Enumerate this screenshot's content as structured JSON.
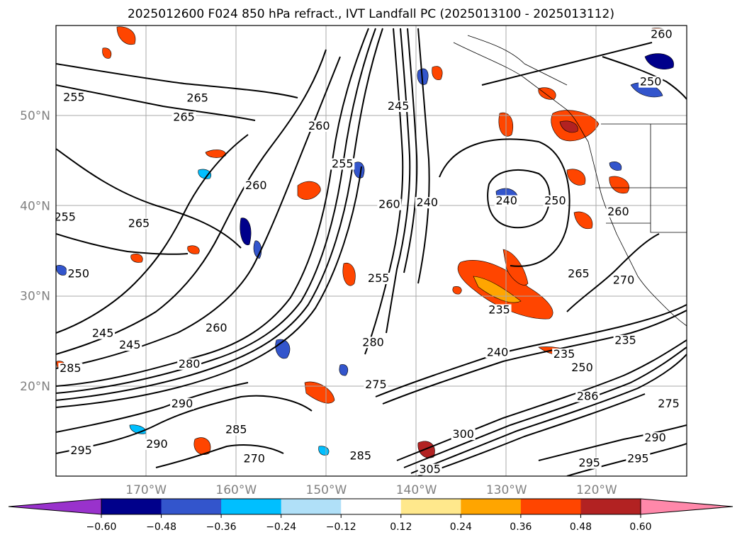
{
  "title": "2025012600 F024 850 hPa refract., IVT Landfall PC (2025013100 - 2025013112)",
  "map": {
    "projection": "lat-lon",
    "extent": {
      "lon_min": -180,
      "lon_max": -110,
      "lat_min": 10,
      "lat_max": 60
    },
    "gridlines": true,
    "lat_ticks": [
      {
        "value": 50,
        "label": "50°N"
      },
      {
        "value": 40,
        "label": "40°N"
      },
      {
        "value": 30,
        "label": "30°N"
      },
      {
        "value": 20,
        "label": "20°N"
      }
    ],
    "lon_ticks": [
      {
        "value": -170,
        "label": "170°W"
      },
      {
        "value": -160,
        "label": "160°W"
      },
      {
        "value": -150,
        "label": "150°W"
      },
      {
        "value": -140,
        "label": "140°W"
      },
      {
        "value": -130,
        "label": "130°W"
      },
      {
        "value": -120,
        "label": "120°W"
      }
    ]
  },
  "contour_labels": [
    {
      "text": "265",
      "lon": -164.3,
      "lat": 51.7
    },
    {
      "text": "265",
      "lon": -165.8,
      "lat": 49.6
    },
    {
      "text": "255",
      "lon": -178.0,
      "lat": 51.8
    },
    {
      "text": "260",
      "lon": -150.8,
      "lat": 48.6
    },
    {
      "text": "255",
      "lon": -148.2,
      "lat": 44.4
    },
    {
      "text": "260",
      "lon": -157.8,
      "lat": 42.0
    },
    {
      "text": "265",
      "lon": -170.8,
      "lat": 37.8
    },
    {
      "text": "255",
      "lon": -179.0,
      "lat": 38.5
    },
    {
      "text": "250",
      "lon": -177.5,
      "lat": 32.2
    },
    {
      "text": "245",
      "lon": -174.8,
      "lat": 25.6
    },
    {
      "text": "245",
      "lon": -171.8,
      "lat": 24.3
    },
    {
      "text": "285",
      "lon": -178.4,
      "lat": 21.7
    },
    {
      "text": "260",
      "lon": -162.2,
      "lat": 26.2
    },
    {
      "text": "280",
      "lon": -165.2,
      "lat": 22.2
    },
    {
      "text": "290",
      "lon": -166.0,
      "lat": 17.8
    },
    {
      "text": "285",
      "lon": -160.0,
      "lat": 14.9
    },
    {
      "text": "290",
      "lon": -168.8,
      "lat": 13.3
    },
    {
      "text": "295",
      "lon": -177.2,
      "lat": 12.6
    },
    {
      "text": "270",
      "lon": -158.0,
      "lat": 11.7
    },
    {
      "text": "240",
      "lon": -138.8,
      "lat": 40.1
    },
    {
      "text": "245",
      "lon": -142.0,
      "lat": 50.8
    },
    {
      "text": "240",
      "lon": -130.0,
      "lat": 40.3
    },
    {
      "text": "260",
      "lon": -143.0,
      "lat": 39.9
    },
    {
      "text": "255",
      "lon": -144.2,
      "lat": 31.7
    },
    {
      "text": "235",
      "lon": -130.8,
      "lat": 28.2
    },
    {
      "text": "280",
      "lon": -144.8,
      "lat": 24.6
    },
    {
      "text": "275",
      "lon": -144.5,
      "lat": 19.9
    },
    {
      "text": "240",
      "lon": -131.0,
      "lat": 23.5
    },
    {
      "text": "235",
      "lon": -123.6,
      "lat": 23.3
    },
    {
      "text": "235",
      "lon": -116.8,
      "lat": 24.8
    },
    {
      "text": "250",
      "lon": -121.6,
      "lat": 21.8
    },
    {
      "text": "265",
      "lon": -122.0,
      "lat": 32.2
    },
    {
      "text": "270",
      "lon": -117.0,
      "lat": 31.5
    },
    {
      "text": "260",
      "lon": -117.6,
      "lat": 39.1
    },
    {
      "text": "250",
      "lon": -124.6,
      "lat": 40.3
    },
    {
      "text": "260",
      "lon": -112.8,
      "lat": 58.8
    },
    {
      "text": "250",
      "lon": -114.0,
      "lat": 53.5
    },
    {
      "text": "286",
      "lon": -121.0,
      "lat": 18.6
    },
    {
      "text": "290",
      "lon": -113.5,
      "lat": 14.0
    },
    {
      "text": "295",
      "lon": -115.4,
      "lat": 11.7
    },
    {
      "text": "295",
      "lon": -120.8,
      "lat": 11.2
    },
    {
      "text": "275",
      "lon": -112.0,
      "lat": 17.8
    },
    {
      "text": "300",
      "lon": -134.8,
      "lat": 14.4
    },
    {
      "text": "285",
      "lon": -146.2,
      "lat": 12.0
    },
    {
      "text": "305",
      "lon": -138.5,
      "lat": 10.5
    }
  ],
  "colorbar": {
    "extend": "both",
    "under_color": "#9932cc",
    "over_color": "#ff88aa",
    "colors": [
      "#00008b",
      "#3355cc",
      "#00bfff",
      "#b0e0f8",
      "#ffffff",
      "#ffe88c",
      "#ffa500",
      "#ff4500",
      "#b22222"
    ],
    "tick_labels": [
      "−0.60",
      "−0.48",
      "−0.36",
      "−0.24",
      "−0.12",
      "0.12",
      "0.24",
      "0.36",
      "0.48",
      "0.60"
    ]
  }
}
